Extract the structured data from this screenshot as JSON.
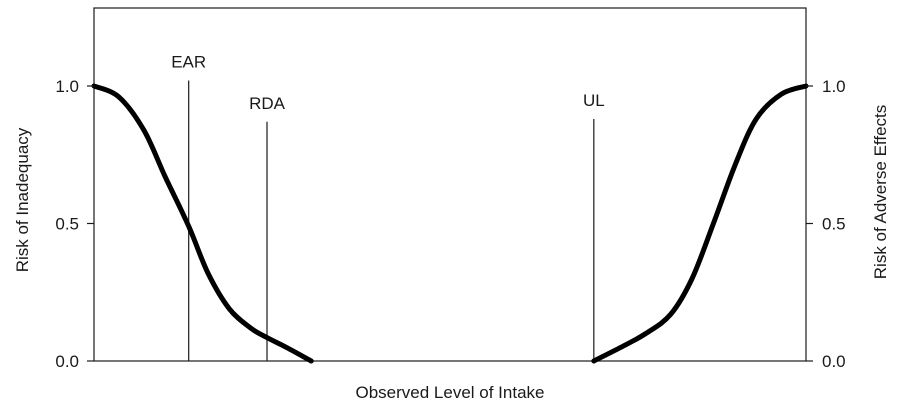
{
  "chart_data": {
    "type": "line",
    "title": "",
    "xlabel": "Observed Level of Intake",
    "ylabel_left": "Risk of Inadequacy",
    "ylabel_right": "Risk of Adverse Effects",
    "ylim": [
      0,
      1.3
    ],
    "xlim": [
      0,
      100
    ],
    "yticks": [
      {
        "value": 1.0,
        "label": "1.0"
      },
      {
        "value": 0.5,
        "label": "0.5"
      },
      {
        "value": 0.0,
        "label": "0.0"
      }
    ],
    "grid": false,
    "legend": "none",
    "markers": [
      {
        "label": "EAR",
        "x": 13.3,
        "top": 1.02
      },
      {
        "label": "RDA",
        "x": 24.3,
        "top": 0.87
      },
      {
        "label": "UL",
        "x": 70.2,
        "top": 0.88
      }
    ],
    "series": [
      {
        "x": [
          0,
          3.5,
          7,
          10,
          13.3,
          16,
          19,
          22,
          24.3,
          27,
          30.5
        ],
        "values": [
          1.0,
          0.96,
          0.84,
          0.67,
          0.49,
          0.32,
          0.19,
          0.12,
          0.085,
          0.05,
          0.0
        ]
      },
      {
        "x": [
          70.2,
          74,
          77.5,
          81,
          84,
          87,
          90,
          93,
          96.5,
          100
        ],
        "values": [
          0.0,
          0.05,
          0.1,
          0.17,
          0.3,
          0.5,
          0.71,
          0.88,
          0.97,
          1.0
        ]
      }
    ],
    "colors": {
      "curve": "#000000",
      "axis": "#1a1a1a"
    }
  }
}
